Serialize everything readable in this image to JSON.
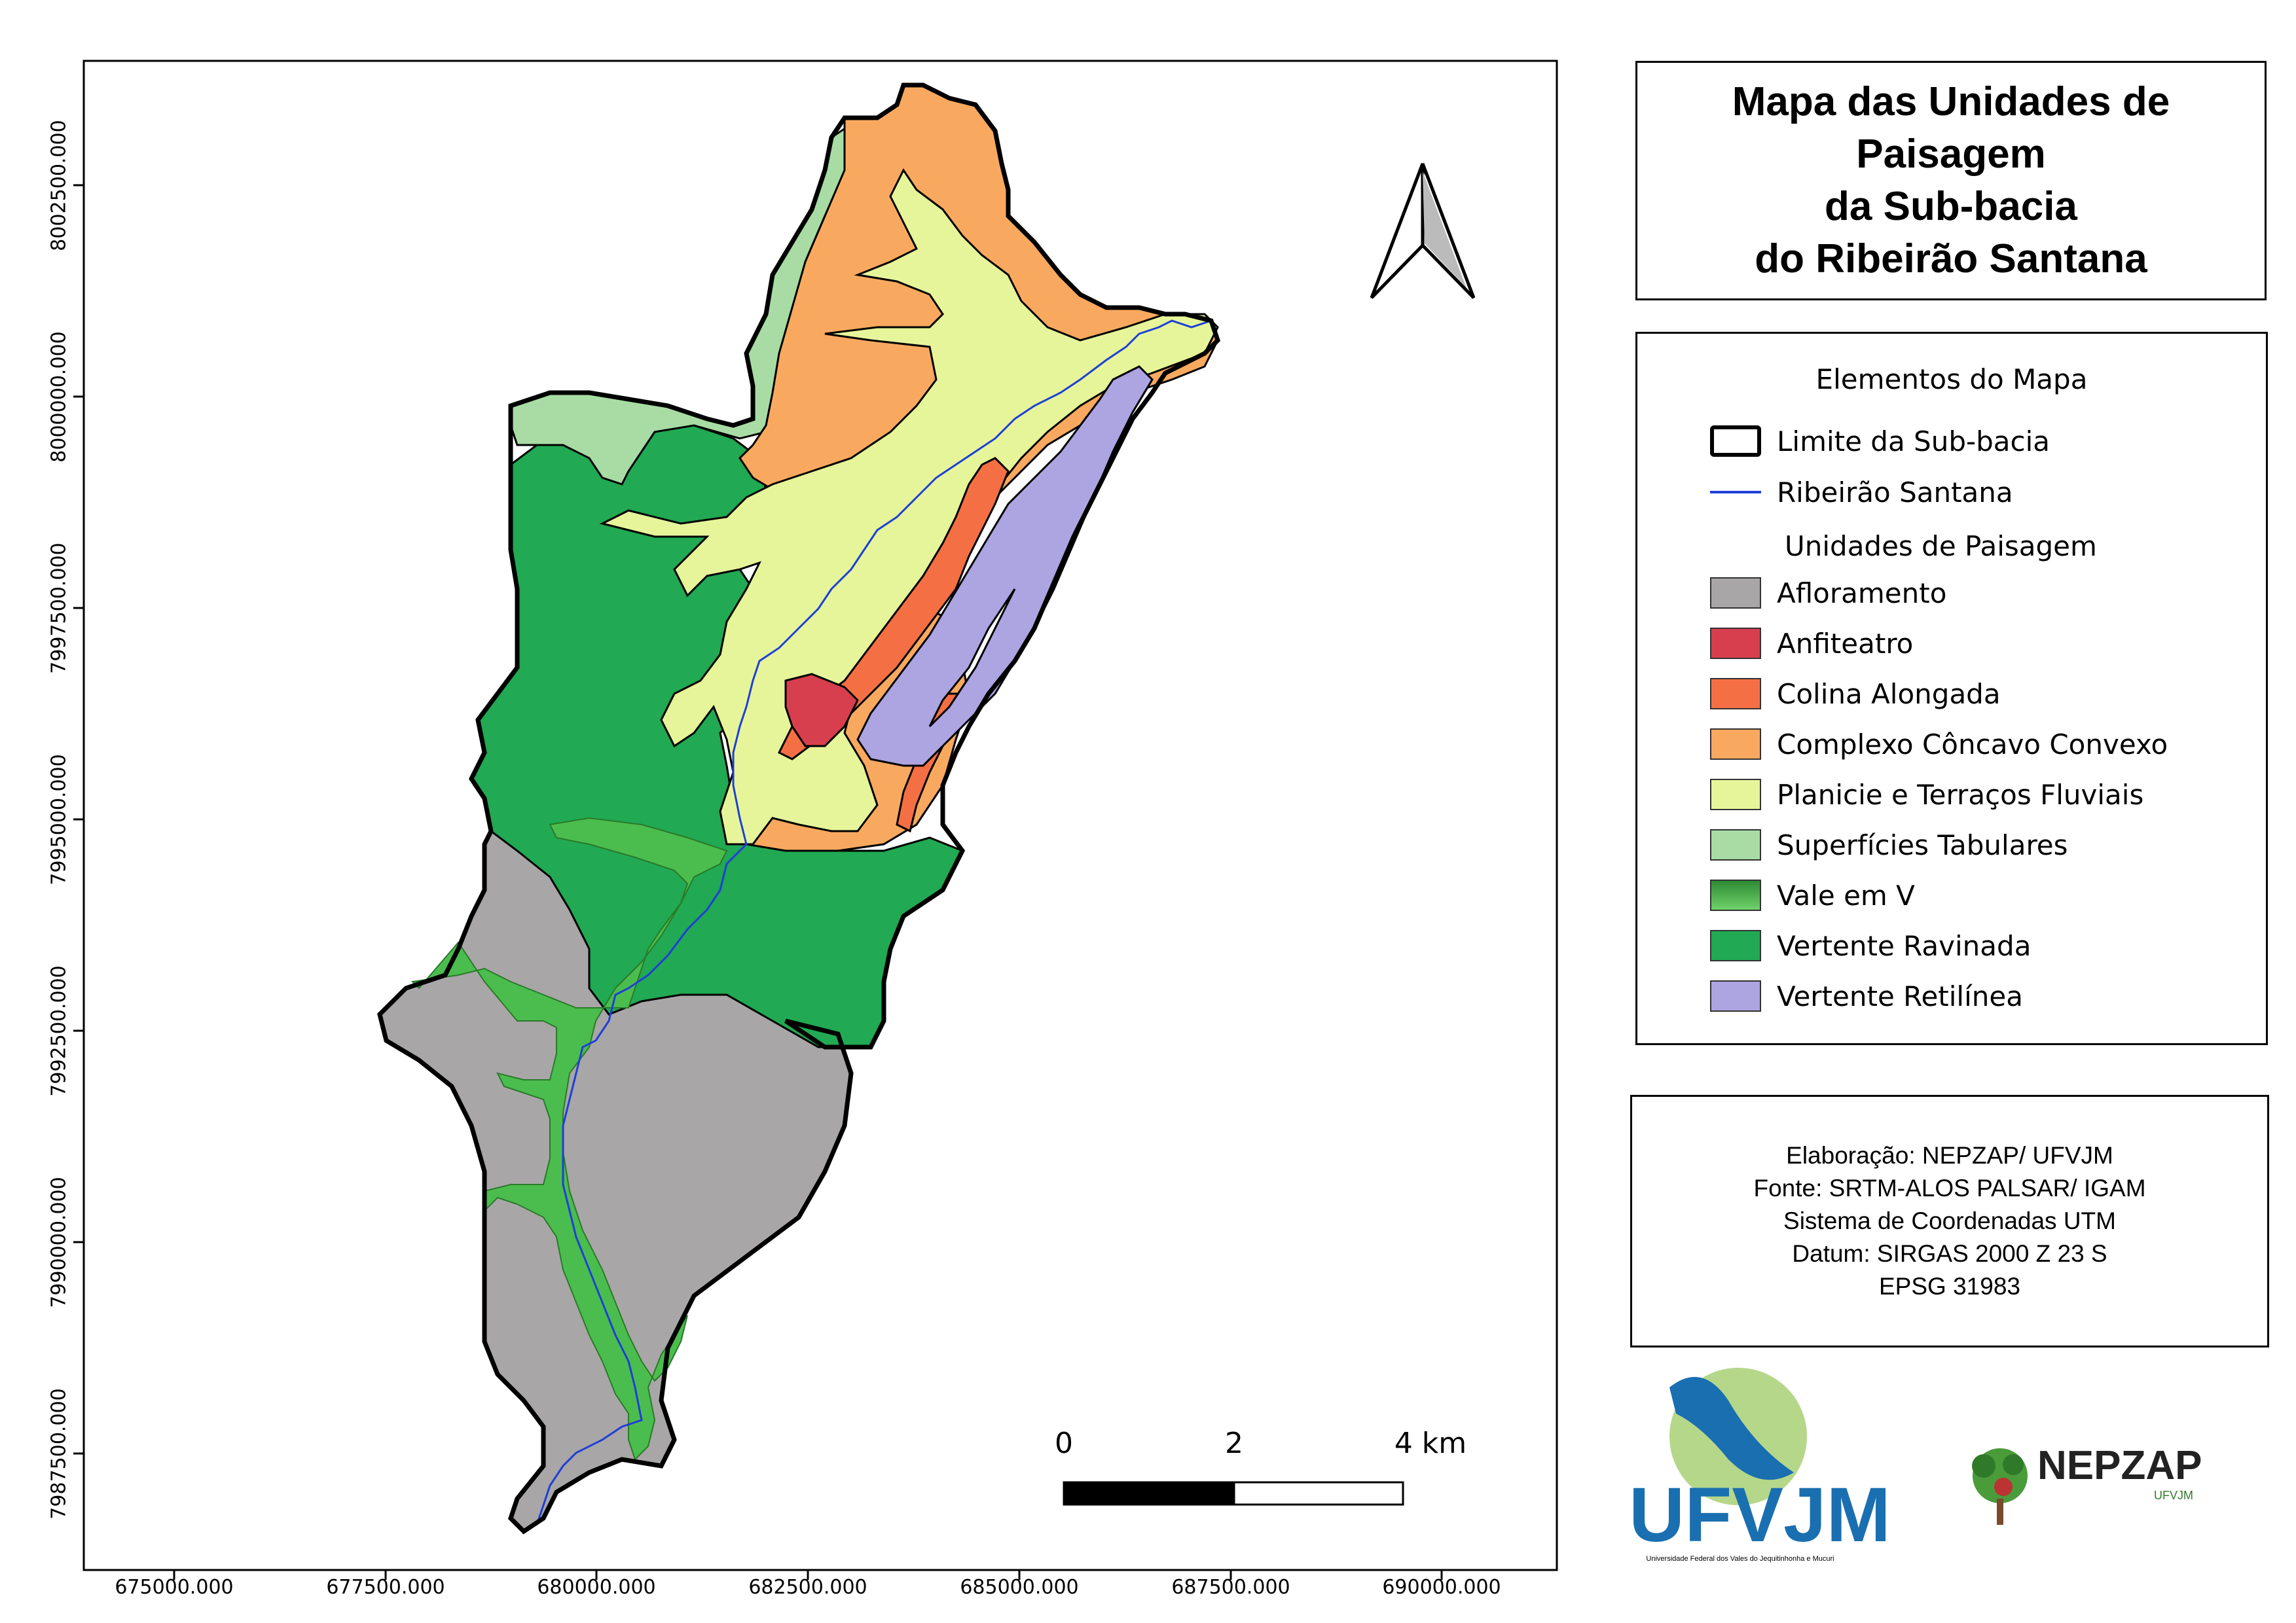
{
  "title": "Mapa das Unidades de\nPaisagem\nda Sub-bacia\ndo Ribeirão Santana",
  "y_ticks": [
    "8002500.000",
    "8000000.000",
    "7997500.000",
    "7995000.000",
    "7992500.000",
    "7990000.000",
    "7987500.000"
  ],
  "x_ticks": [
    "675000.000",
    "677500.000",
    "680000.000",
    "682500.000",
    "685000.000",
    "687500.000",
    "690000.000"
  ],
  "legend": {
    "heading": "Elementos do Mapa",
    "boundary_label": "Limite da Sub-bacia",
    "river_label": "Ribeirão Santana",
    "units_heading": "Unidades de Paisagem",
    "units": [
      {
        "label": "Afloramento",
        "color": "#a8a6a7"
      },
      {
        "label": "Anfiteatro",
        "color": "#d73f4e"
      },
      {
        "label": "Colina Alongada",
        "color": "#f47044"
      },
      {
        "label": "Complexo Côncavo Convexo",
        "color": "#f9a95f"
      },
      {
        "label": "Planicie e Terraços Fluviais",
        "color": "#e6f59a"
      },
      {
        "label": "Superfícies Tabulares",
        "color": "#a8dca4"
      },
      {
        "label": "Vale em V",
        "color": "#4bbd4e"
      },
      {
        "label": "Vertente Ravinada",
        "color": "#21a953"
      },
      {
        "label": "Vertente Retilínea",
        "color": "#ada4e2"
      }
    ]
  },
  "colors": {
    "river": "#1f3fd6",
    "boundary": "#000000"
  },
  "credits": {
    "line1": "Elaboração: NEPZAP/ UFVJM",
    "line2": "Fonte: SRTM-ALOS PALSAR/ IGAM",
    "line3": "Sistema de Coordenadas UTM",
    "line4": "Datum: SIRGAS 2000 Z 23 S",
    "line5": "EPSG 31983"
  },
  "scale_bar": {
    "labels": [
      "0",
      "2",
      "4 km"
    ]
  },
  "logos": {
    "ufvjm": "UFVJM",
    "ufvjm_sub": "Universidade Federal dos Vales do Jequitinhonha e Mucuri",
    "nepzap": "NEPZAP",
    "nepzap_sub": "UFVJM"
  },
  "north_arrow_icon": "north-arrow-icon"
}
